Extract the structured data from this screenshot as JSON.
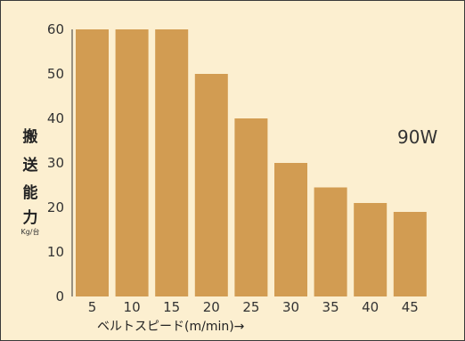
{
  "chart_data": {
    "type": "bar",
    "categories": [
      "5",
      "10",
      "15",
      "20",
      "25",
      "30",
      "35",
      "40",
      "45"
    ],
    "values": [
      60,
      60,
      60,
      50,
      40,
      30,
      24.5,
      21,
      19
    ],
    "ylim": [
      0,
      60
    ],
    "yticks": [
      "0",
      "10",
      "20",
      "30",
      "40",
      "50",
      "60"
    ],
    "ylabel_chars": [
      "搬",
      "送",
      "能",
      "力"
    ],
    "ylabel_unit": "Kg/台",
    "xlabel": "ベルトスピード(m/min)→",
    "annotation": "90W",
    "grid": false,
    "colors": {
      "bar": "#d29c52",
      "background": "#fcefd0",
      "border": "#3a3a3a"
    }
  }
}
